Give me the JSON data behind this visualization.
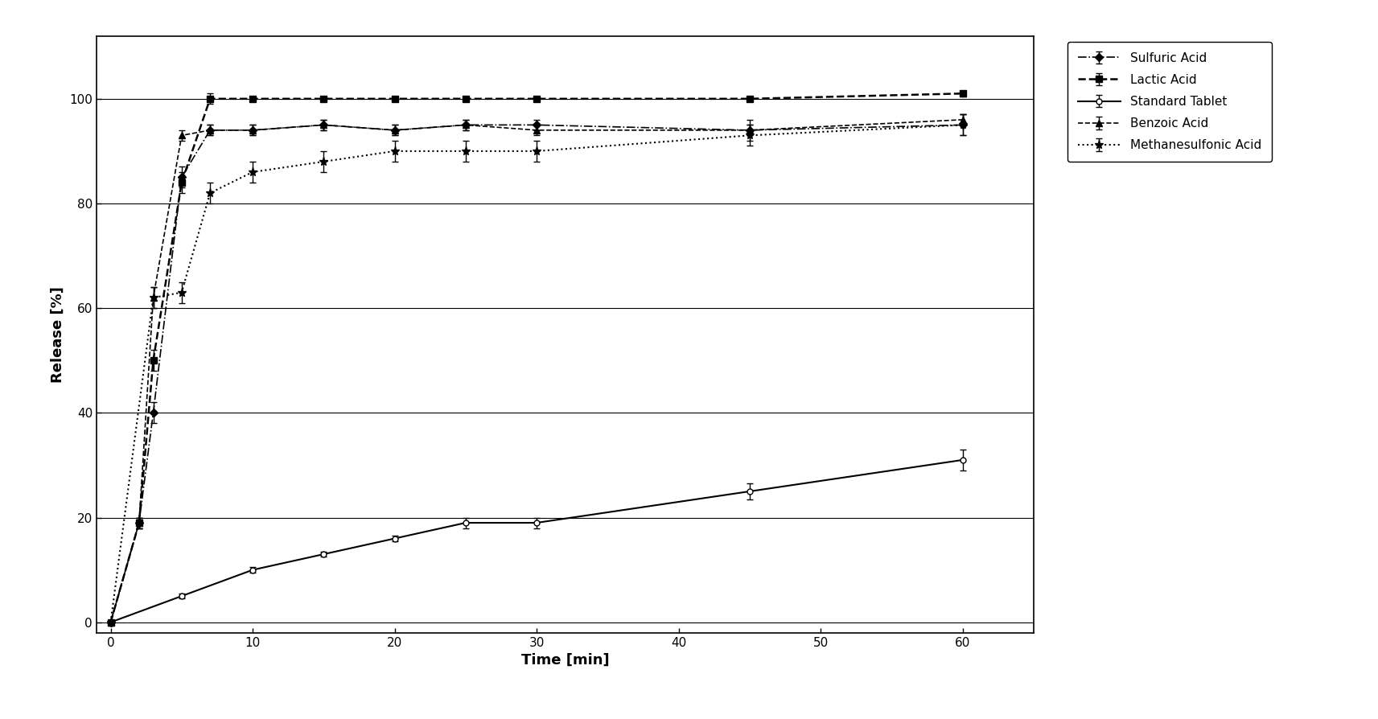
{
  "title": "",
  "xlabel": "Time [min]",
  "ylabel": "Release [%]",
  "xlim": [
    -1,
    65
  ],
  "ylim": [
    -2,
    112
  ],
  "yticks": [
    0,
    20,
    40,
    60,
    80,
    100
  ],
  "xticks": [
    0,
    10,
    20,
    30,
    40,
    50,
    60
  ],
  "series": {
    "sulfuric_acid": {
      "label": "Sulfuric Acid",
      "x": [
        0,
        2,
        3,
        5,
        7,
        10,
        15,
        20,
        25,
        30,
        45,
        60
      ],
      "y": [
        0,
        19,
        40,
        85,
        94,
        94,
        95,
        94,
        95,
        95,
        94,
        95
      ],
      "yerr": [
        0,
        1,
        2,
        2,
        1,
        1,
        1,
        1,
        1,
        1,
        1,
        2
      ],
      "color": "black",
      "linestyle": "-.",
      "marker": "D",
      "markersize": 5,
      "markerfacecolor": "black",
      "linewidth": 1.2
    },
    "lactic_acid": {
      "label": "Lactic Acid",
      "x": [
        0,
        2,
        3,
        5,
        7,
        10,
        15,
        20,
        25,
        30,
        45,
        60
      ],
      "y": [
        0,
        19,
        50,
        84,
        100,
        100,
        100,
        100,
        100,
        100,
        100,
        101
      ],
      "yerr": [
        0,
        1,
        2,
        2,
        1,
        0.5,
        0.5,
        0.5,
        0.5,
        0.5,
        0.5,
        0.5
      ],
      "color": "black",
      "linestyle": "--",
      "marker": "s",
      "markersize": 6,
      "markerfacecolor": "black",
      "linewidth": 1.8
    },
    "standard_tablet": {
      "label": "Standard Tablet",
      "x": [
        0,
        5,
        10,
        15,
        20,
        25,
        30,
        45,
        60
      ],
      "y": [
        0,
        5,
        10,
        13,
        16,
        19,
        19,
        25,
        31
      ],
      "yerr": [
        0,
        0.5,
        0.5,
        0.5,
        0.5,
        1,
        1,
        1.5,
        2
      ],
      "color": "black",
      "linestyle": "-",
      "marker": "o",
      "markersize": 5,
      "markerfacecolor": "white",
      "linewidth": 1.5
    },
    "benzoic_acid": {
      "label": "Benzoic Acid",
      "x": [
        0,
        2,
        3,
        5,
        7,
        10,
        15,
        20,
        25,
        30,
        45,
        60
      ],
      "y": [
        0,
        19,
        62,
        93,
        94,
        94,
        95,
        94,
        95,
        94,
        94,
        96
      ],
      "yerr": [
        0,
        1,
        2,
        1,
        1,
        1,
        1,
        1,
        1,
        1,
        2,
        1
      ],
      "color": "black",
      "linestyle": "--",
      "marker": "^",
      "markersize": 6,
      "markerfacecolor": "black",
      "linewidth": 1.2
    },
    "methanesulfonic_acid": {
      "label": "Methanesulfonic Acid",
      "x": [
        0,
        3,
        5,
        7,
        10,
        15,
        20,
        25,
        30,
        45,
        60
      ],
      "y": [
        0,
        62,
        63,
        82,
        86,
        88,
        90,
        90,
        90,
        93,
        95
      ],
      "yerr": [
        0,
        2,
        2,
        2,
        2,
        2,
        2,
        2,
        2,
        2,
        2
      ],
      "color": "black",
      "linestyle": ":",
      "marker": "*",
      "markersize": 8,
      "markerfacecolor": "black",
      "linewidth": 1.5
    }
  },
  "background_color": "white",
  "legend_fontsize": 11,
  "axis_fontsize": 13,
  "tick_fontsize": 11
}
